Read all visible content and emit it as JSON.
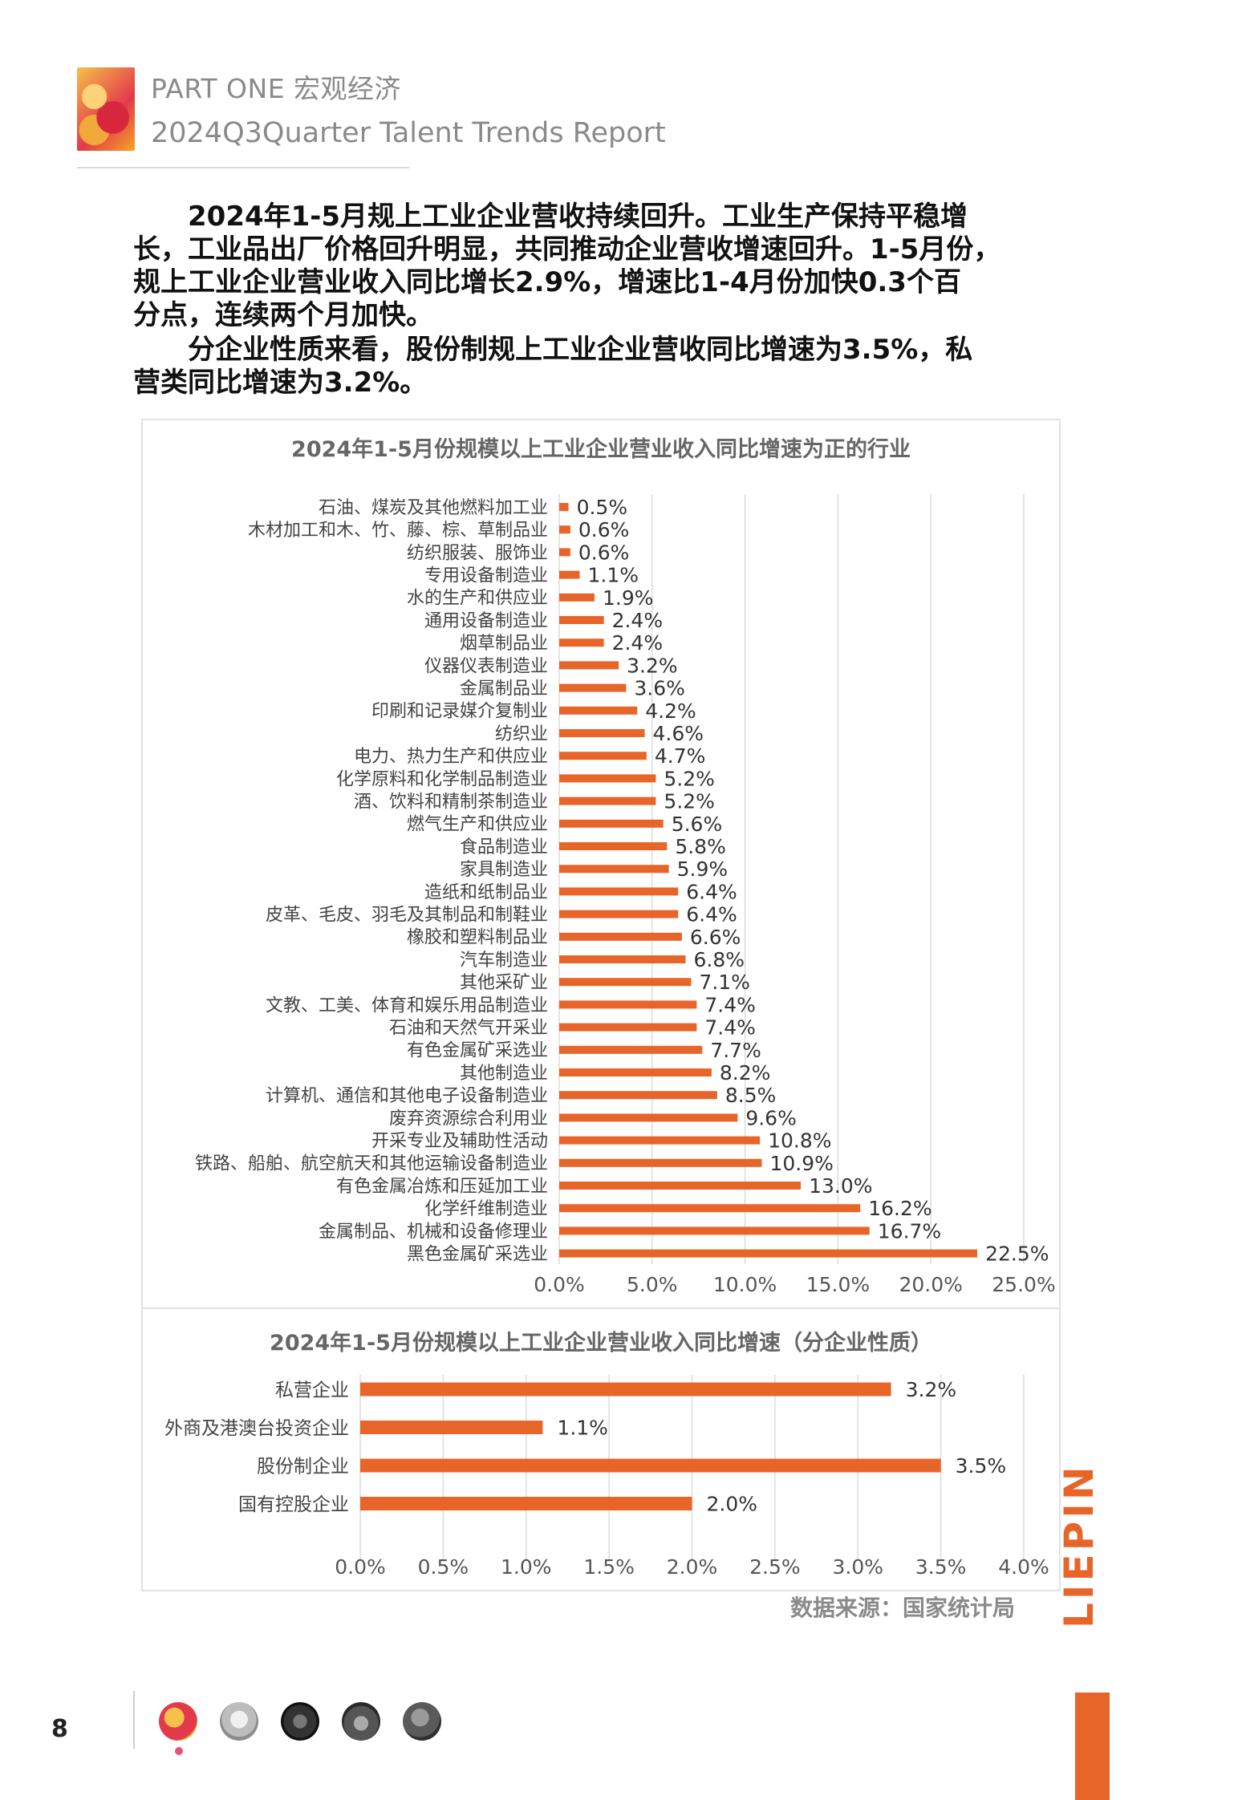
{
  "header": {
    "part_label": "PART ONE  宏观经济",
    "report_title": "2024Q3Quarter Talent Trends Report"
  },
  "paragraphs": [
    [
      "　　2024年1-5月规上工业企业营收持续回升。工业生产保持平稳增",
      "长，工业品出厂价格回升明显，共同推动企业营收增速回升。1-5月份，",
      "规上工业企业营业收入同比增长2.9%，增速比1-4月份加快0.3个百",
      "分点，连续两个月加快。"
    ],
    [
      "　　分企业性质来看，股份制规上工业企业营收同比增速为3.5%，私",
      "营类同比增速为3.2%。"
    ]
  ],
  "source_note": "数据来源：国家统计局",
  "brand": "LIEPIN",
  "page_number": "8",
  "colors": {
    "accent": "#E8652A",
    "bar": "#E8652A",
    "text_muted": "#8A8A8A"
  },
  "footer_icons": [
    "fruit-thumb-icon",
    "shirt-thumb-icon",
    "city-thumb-icon",
    "street-thumb-icon",
    "person-thumb-icon"
  ],
  "chart_data": [
    {
      "type": "bar",
      "orientation": "horizontal",
      "title": "2024年1-5月份规模以上工业企业营业收入同比增速为正的行业",
      "categories": [
        "石油、煤炭及其他燃料加工业",
        "木材加工和木、竹、藤、棕、草制品业",
        "纺织服装、服饰业",
        "专用设备制造业",
        "水的生产和供应业",
        "通用设备制造业",
        "烟草制品业",
        "仪器仪表制造业",
        "金属制品业",
        "印刷和记录媒介复制业",
        "纺织业",
        "电力、热力生产和供应业",
        "化学原料和化学制品制造业",
        "酒、饮料和精制茶制造业",
        "燃气生产和供应业",
        "食品制造业",
        "家具制造业",
        "造纸和纸制品业",
        "皮革、毛皮、羽毛及其制品和制鞋业",
        "橡胶和塑料制品业",
        "汽车制造业",
        "其他采矿业",
        "文教、工美、体育和娱乐用品制造业",
        "石油和天然气开采业",
        "有色金属矿采选业",
        "其他制造业",
        "计算机、通信和其他电子设备制造业",
        "废弃资源综合利用业",
        "开采专业及辅助性活动",
        "铁路、船舶、航空航天和其他运输设备制造业",
        "有色金属冶炼和压延加工业",
        "化学纤维制造业",
        "金属制品、机械和设备修理业",
        "黑色金属矿采选业"
      ],
      "values": [
        0.5,
        0.6,
        0.6,
        1.1,
        1.9,
        2.4,
        2.4,
        3.2,
        3.6,
        4.2,
        4.6,
        4.7,
        5.2,
        5.2,
        5.6,
        5.8,
        5.9,
        6.4,
        6.4,
        6.6,
        6.8,
        7.1,
        7.4,
        7.4,
        7.7,
        8.2,
        8.5,
        9.6,
        10.8,
        10.9,
        13.0,
        16.2,
        16.7,
        22.5
      ],
      "data_labels": [
        "0.5%",
        "0.6%",
        "0.6%",
        "1.1%",
        "1.9%",
        "2.4%",
        "2.4%",
        "3.2%",
        "3.6%",
        "4.2%",
        "4.6%",
        "4.7%",
        "5.2%",
        "5.2%",
        "5.6%",
        "5.8%",
        "5.9%",
        "6.4%",
        "6.4%",
        "6.6%",
        "6.8%",
        "7.1%",
        "7.4%",
        "7.4%",
        "7.7%",
        "8.2%",
        "8.5%",
        "9.6%",
        "10.8%",
        "10.9%",
        "13.0%",
        "16.2%",
        "16.7%",
        "22.5%"
      ],
      "xlim": [
        0,
        25
      ],
      "xticks": [
        0,
        5,
        10,
        15,
        20,
        25
      ],
      "xtick_labels": [
        "0.0%",
        "5.0%",
        "10.0%",
        "15.0%",
        "20.0%",
        "25.0%"
      ],
      "grid": "vertical"
    },
    {
      "type": "bar",
      "orientation": "horizontal",
      "title": "2024年1-5月份规模以上工业企业营业收入同比增速（分企业性质）",
      "categories": [
        "私营企业",
        "外商及港澳台投资企业",
        "股份制企业",
        "国有控股企业"
      ],
      "values": [
        3.2,
        1.1,
        3.5,
        2.0
      ],
      "data_labels": [
        "3.2%",
        "1.1%",
        "3.5%",
        "2.0%"
      ],
      "xlim": [
        0,
        4
      ],
      "xticks": [
        0,
        0.5,
        1,
        1.5,
        2,
        2.5,
        3,
        3.5,
        4
      ],
      "xtick_labels": [
        "0.0%",
        "0.5%",
        "1.0%",
        "1.5%",
        "2.0%",
        "2.5%",
        "3.0%",
        "3.5%",
        "4.0%"
      ],
      "grid": "vertical"
    }
  ]
}
